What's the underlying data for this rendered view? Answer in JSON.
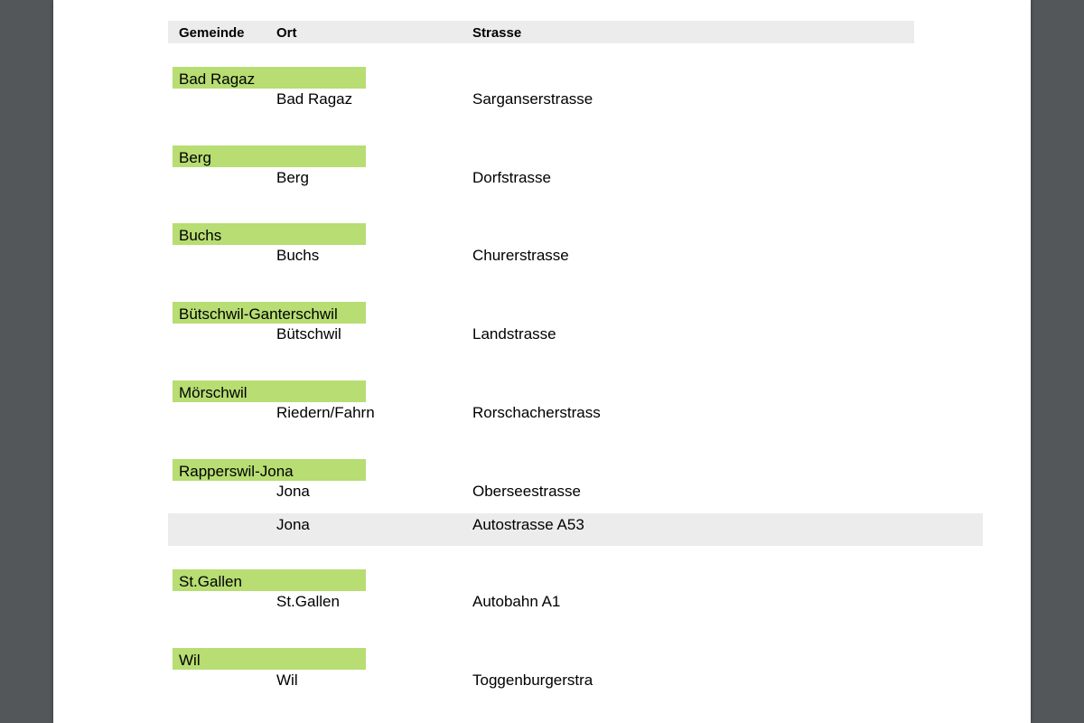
{
  "table": {
    "headers": {
      "gemeinde": "Gemeinde",
      "ort": "Ort",
      "strasse": "Strasse"
    },
    "band_color": "#b7dd73",
    "alt_row_color": "#ececec",
    "groups": [
      {
        "gemeinde": "Bad Ragaz",
        "rows": [
          {
            "ort": "Bad Ragaz",
            "strasse": "Sarganserstrasse"
          }
        ]
      },
      {
        "gemeinde": "Berg",
        "rows": [
          {
            "ort": "Berg",
            "strasse": "Dorfstrasse"
          }
        ]
      },
      {
        "gemeinde": "Buchs",
        "rows": [
          {
            "ort": "Buchs",
            "strasse": "Churerstrasse"
          }
        ]
      },
      {
        "gemeinde": "Bütschwil-Ganterschwil",
        "rows": [
          {
            "ort": "Bütschwil",
            "strasse": "Landstrasse"
          }
        ]
      },
      {
        "gemeinde": "Mörschwil",
        "rows": [
          {
            "ort": "Riedern/Fahrn",
            "strasse": "Rorschacherstrass"
          }
        ]
      },
      {
        "gemeinde": "Rapperswil-Jona",
        "rows": [
          {
            "ort": "Jona",
            "strasse": "Oberseestrasse"
          },
          {
            "ort": "Jona",
            "strasse": "Autostrasse A53"
          }
        ]
      },
      {
        "gemeinde": "St.Gallen",
        "rows": [
          {
            "ort": "St.Gallen",
            "strasse": "Autobahn A1"
          }
        ]
      },
      {
        "gemeinde": "Wil",
        "rows": [
          {
            "ort": "Wil",
            "strasse": "Toggenburgerstra"
          }
        ]
      }
    ]
  }
}
